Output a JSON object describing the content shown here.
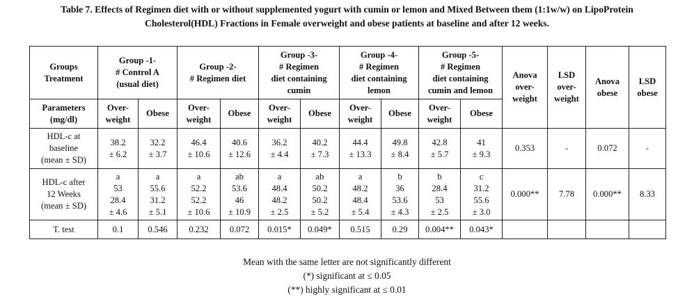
{
  "caption": {
    "line1": "Table 7. Effects of Regimen diet with or without supplemented yogurt with cumin or lemon and Mixed Between them (1:1w/w) on LipoProtein",
    "line2": "Cholesterol(HDL) Fractions in Female overweight and obese patients at baseline and after 12 weeks."
  },
  "header": {
    "groups_treatment": [
      "Groups",
      "Treatment"
    ],
    "group1": [
      "Group -1-",
      "# Control A",
      "(usual diet)"
    ],
    "group2": [
      "Group -2-",
      "# Regimen diet"
    ],
    "group3": [
      "Group -3-",
      "# Regimen",
      "diet containing",
      "cumin"
    ],
    "group4": [
      "Group -4-",
      "# Regimen",
      "diet containing",
      "lemon"
    ],
    "group5": [
      "Group -5-",
      "# Regimen",
      "diet containing",
      "cumin and lemon"
    ],
    "anova_over": [
      "Anova",
      "over-",
      "weight"
    ],
    "lsd_over": [
      "LSD",
      "over-",
      "weight"
    ],
    "anova_obese": [
      "Anova",
      "obese"
    ],
    "lsd_obese": [
      "LSD",
      "obese"
    ],
    "parameters": [
      "Parameters",
      "(mg/dl)"
    ],
    "overweight": [
      "Over-",
      "weight"
    ],
    "obese": "Obese"
  },
  "rows": {
    "baseline": {
      "label": [
        "HDL-c at",
        "baseline",
        "(mean ± SD)"
      ],
      "cells": [
        [
          "38.2",
          "± 6.2"
        ],
        [
          "32.2",
          "± 3.7"
        ],
        [
          "46.4",
          "± 10.6"
        ],
        [
          "40.6",
          "± 12.6"
        ],
        [
          "36.2",
          "± 4.4"
        ],
        [
          "40.2",
          "± 7.3"
        ],
        [
          "44.4",
          "± 13.3"
        ],
        [
          "49.8",
          "± 8.4"
        ],
        [
          "42.8",
          "± 5.7"
        ],
        [
          "41",
          "± 9.3"
        ]
      ],
      "anova_over": "0.353",
      "lsd_over": "-",
      "anova_obese": "0.072",
      "lsd_obese": "-"
    },
    "after": {
      "label": [
        "HDL-c after",
        "12 Weeks",
        "(mean ± SD)"
      ],
      "cells": [
        [
          "a",
          "53",
          "28.4",
          "± 4.6"
        ],
        [
          "a",
          "55.6",
          "31.2",
          "± 5.1"
        ],
        [
          "a",
          "52.2",
          "52.2",
          "± 10.6"
        ],
        [
          "ab",
          "53.6",
          "46",
          "± 10.9"
        ],
        [
          "a",
          "48.4",
          "48.2",
          "± 2.5"
        ],
        [
          "ab",
          "50.2",
          "50.2",
          "± 5.2"
        ],
        [
          "a",
          "48.2",
          "48.4",
          "± 5.4"
        ],
        [
          "b",
          "36",
          "53.6",
          "± 4.3"
        ],
        [
          "b",
          "28.4",
          "53",
          "± 2.5"
        ],
        [
          "c",
          "31.2",
          "55.6",
          "± 3.0"
        ]
      ],
      "anova_over": "0.000**",
      "lsd_over": "7.78",
      "anova_obese": "0.000**",
      "lsd_obese": "8.33"
    },
    "ttest": {
      "label": "T. test",
      "cells": [
        "0.1",
        "0.546",
        "0.232",
        "0.072",
        "0.015*",
        "0.049*",
        "0.515",
        "0.29",
        "0.004**",
        "0.043*"
      ]
    }
  },
  "notes": [
    "Mean with the same letter are not significantly different",
    "(*) significant at ≤ 0.05",
    "(**) highly significant at ≤ 0.01"
  ]
}
